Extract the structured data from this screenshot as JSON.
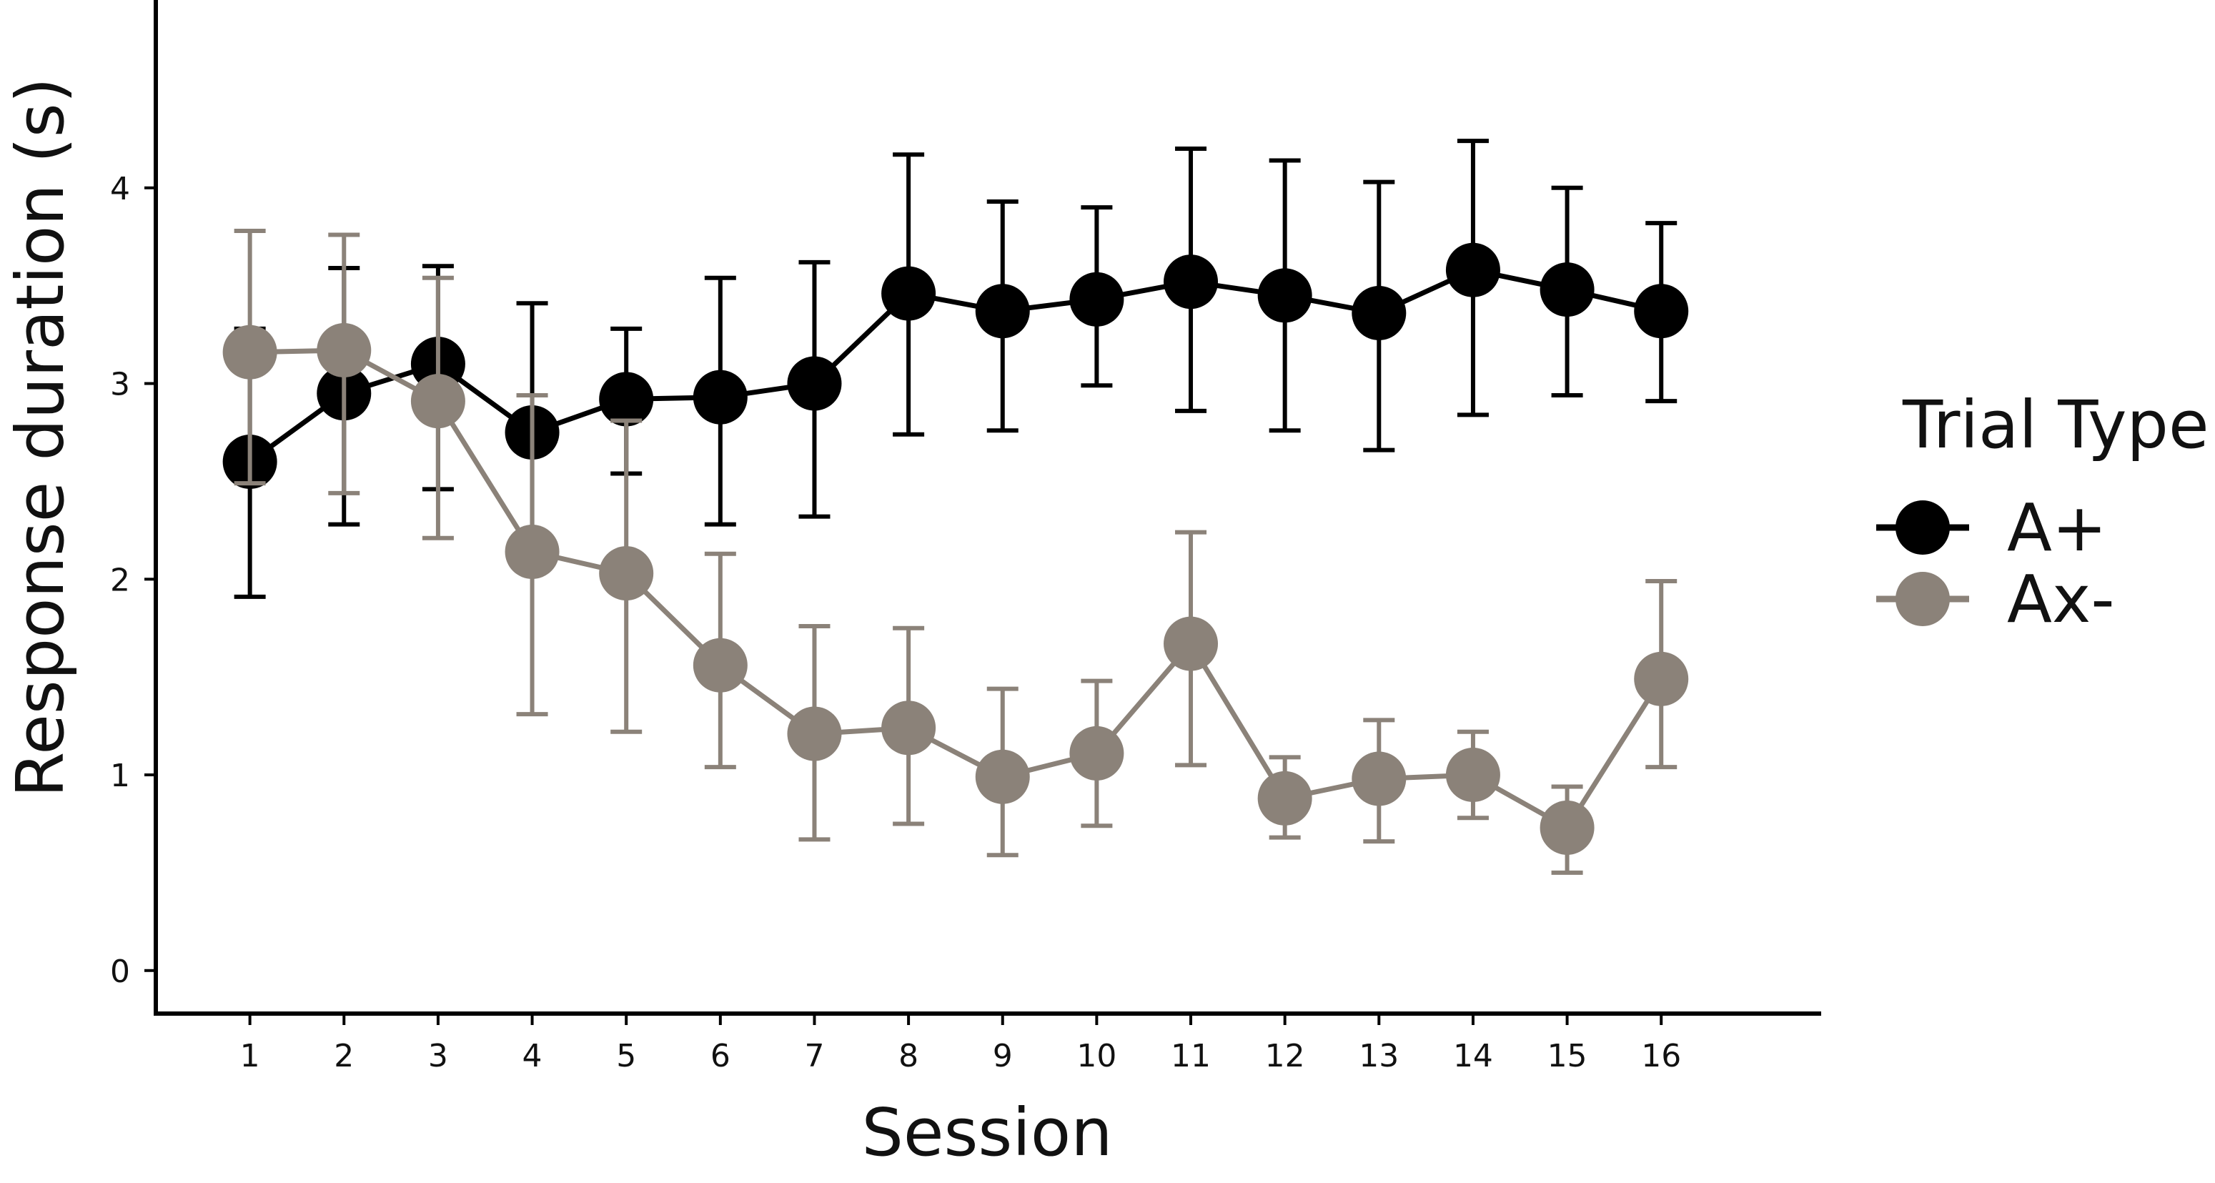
{
  "chart_data": {
    "type": "line",
    "title": "",
    "xlabel": "Session",
    "ylabel": "Response duration (s)",
    "x": [
      1,
      2,
      3,
      4,
      5,
      6,
      7,
      8,
      9,
      10,
      11,
      12,
      13,
      14,
      15,
      16
    ],
    "x_tick_labels": [
      "1",
      "2",
      "3",
      "4",
      "5",
      "6",
      "7",
      "8",
      "9",
      "10",
      "11",
      "12",
      "13",
      "14",
      "15",
      "16"
    ],
    "xlim": [
      0,
      17.7
    ],
    "y_ticks": [
      0,
      1,
      2,
      3,
      4
    ],
    "y_tick_labels": [
      "0",
      "1",
      "2",
      "3",
      "4"
    ],
    "ylim": [
      -0.22,
      4.96
    ],
    "grid": false,
    "legend": {
      "title": "Trial Type",
      "position": "right"
    },
    "series": [
      {
        "name": "A+",
        "color": "#000000",
        "values": [
          2.6,
          2.95,
          3.1,
          2.75,
          2.92,
          2.93,
          3.0,
          3.46,
          3.37,
          3.43,
          3.52,
          3.45,
          3.36,
          3.58,
          3.48,
          3.37
        ],
        "err_low": [
          1.91,
          2.28,
          2.46,
          2.09,
          2.54,
          2.28,
          2.32,
          2.74,
          2.76,
          2.99,
          2.86,
          2.76,
          2.66,
          2.84,
          2.94,
          2.91
        ],
        "err_high": [
          3.28,
          3.59,
          3.6,
          3.41,
          3.28,
          3.54,
          3.62,
          4.17,
          3.93,
          3.9,
          4.2,
          4.14,
          4.03,
          4.24,
          4.0,
          3.82
        ]
      },
      {
        "name": "Ax-",
        "color": "#8b8279",
        "values": [
          3.16,
          3.17,
          2.91,
          2.14,
          2.03,
          1.56,
          1.21,
          1.24,
          0.99,
          1.11,
          1.67,
          0.88,
          0.98,
          1.0,
          0.73,
          1.49
        ],
        "err_low": [
          2.49,
          2.44,
          2.21,
          1.31,
          1.22,
          1.04,
          0.67,
          0.75,
          0.59,
          0.74,
          1.05,
          0.68,
          0.66,
          0.78,
          0.5,
          1.04
        ],
        "err_high": [
          3.78,
          3.76,
          3.54,
          2.94,
          2.81,
          2.13,
          1.76,
          1.75,
          1.44,
          1.48,
          2.24,
          1.09,
          1.28,
          1.22,
          0.94,
          1.99
        ]
      }
    ]
  }
}
